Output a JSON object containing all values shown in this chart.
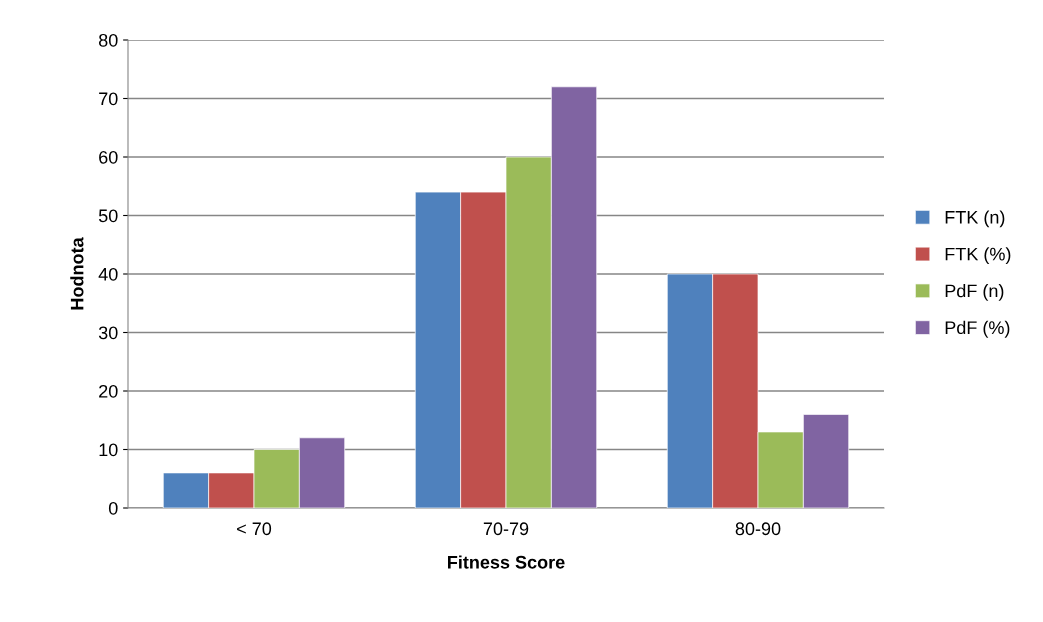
{
  "chart_data": {
    "type": "bar",
    "xlabel": "Fitness Score",
    "ylabel": "Hodnota",
    "categories": [
      "< 70",
      "70-79",
      "80-90"
    ],
    "series": [
      {
        "name": "FTK (n)",
        "color": "#4f81bd",
        "values": [
          6,
          54,
          40
        ]
      },
      {
        "name": "FTK (%)",
        "color": "#c0504d",
        "values": [
          6,
          54,
          40
        ]
      },
      {
        "name": "PdF (n)",
        "color": "#9bbb59",
        "values": [
          10,
          60,
          13
        ]
      },
      {
        "name": "PdF (%)",
        "color": "#8064a2",
        "values": [
          12,
          72,
          16
        ]
      }
    ],
    "ylim": [
      0,
      80
    ],
    "yticks": [
      0,
      10,
      20,
      30,
      40,
      50,
      60,
      70,
      80
    ],
    "grid": "y",
    "legend": "right"
  }
}
